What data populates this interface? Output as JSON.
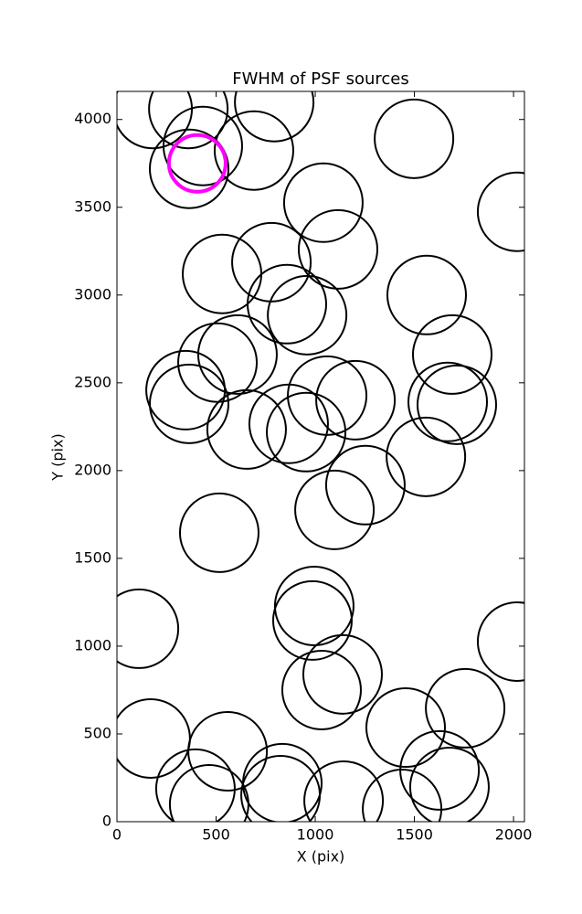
{
  "chart_data": {
    "type": "scatter",
    "title": "FWHM of PSF sources",
    "x_label": "X (pix)",
    "y_label": "Y (pix)",
    "xlim": [
      0,
      2055
    ],
    "ylim": [
      0,
      4160
    ],
    "xticks": [
      0,
      500,
      1000,
      1500,
      2000
    ],
    "yticks": [
      0,
      500,
      1000,
      1500,
      2000,
      2500,
      3000,
      3500,
      4000
    ],
    "grid": false,
    "series": [
      {
        "color": "#000000",
        "x": [
          180,
          360,
          793,
          433,
          364,
          691,
          1498,
          2018,
          1041,
          1115,
          530,
          779,
          1562,
          857,
          959,
          608,
          507,
          1691,
          346,
          364,
          1060,
          1203,
          1668,
          1714,
          654,
          866,
          954,
          1253,
          1097,
          1558,
          516,
          111,
          995,
          986,
          2018,
          1138,
          1032,
          1756,
          1456,
          170,
          558,
          396,
          465,
          834,
          825,
          1143,
          1438,
          1627,
          1677
        ],
        "values": [
          4060,
          4060,
          4099,
          3849,
          3719,
          3823,
          3890,
          3474,
          3526,
          3260,
          3120,
          3187,
          3000,
          2948,
          2885,
          2661,
          2615,
          2661,
          2458,
          2380,
          2427,
          2401,
          2391,
          2375,
          2234,
          2266,
          2219,
          1917,
          1776,
          2078,
          1646,
          1099,
          1229,
          1146,
          1026,
          839,
          750,
          646,
          536,
          474,
          401,
          188,
          99,
          219,
          151,
          120,
          73,
          292,
          198
        ]
      },
      {
        "color": "#ff00ff",
        "x": [
          405
        ],
        "values": [
          3750
        ]
      }
    ]
  }
}
